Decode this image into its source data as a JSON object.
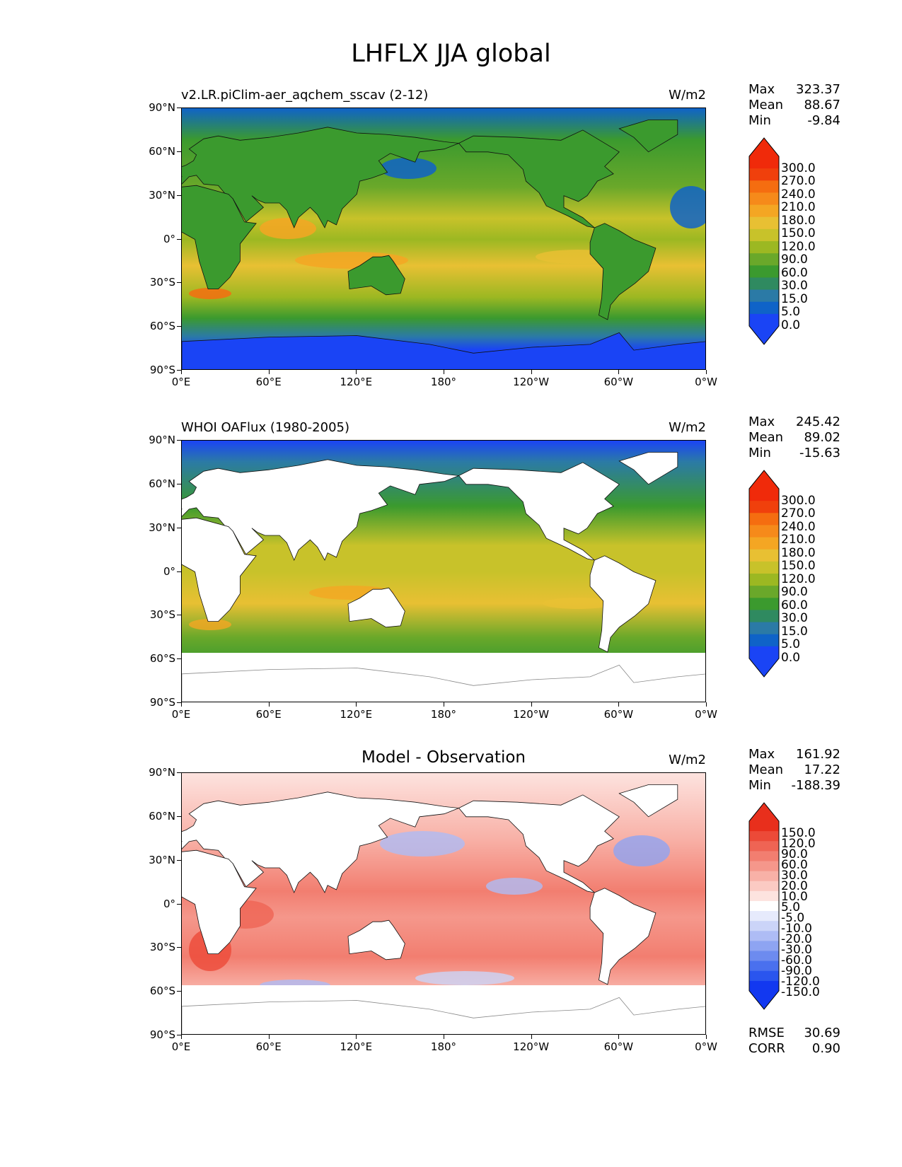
{
  "figure_title": "LHFLX JJA global",
  "panels": [
    {
      "id": "model",
      "title_left": "v2.LR.piClim-aer_aqchem_sscav (2-12)",
      "title_center": "",
      "units": "W/m2",
      "stats": [
        [
          "Max",
          "323.37"
        ],
        [
          "Mean",
          "88.67"
        ],
        [
          "Min",
          "-9.84"
        ]
      ],
      "extra_stats": [],
      "colorbar_labels": [
        "300.0",
        "270.0",
        "240.0",
        "210.0",
        "180.0",
        "150.0",
        "120.0",
        "90.0",
        "60.0",
        "30.0",
        "15.0",
        "5.0",
        "0.0"
      ],
      "colorbar_colors": [
        "#1a44f5",
        "#0f63c8",
        "#2b7aa6",
        "#2f8a60",
        "#3b9a2e",
        "#6aa82a",
        "#9cb822",
        "#c8c22a",
        "#e8c033",
        "#f4a623",
        "#f68a1a",
        "#f56d10",
        "#f0400c",
        "#f02a0a"
      ],
      "land_masked": false
    },
    {
      "id": "obs",
      "title_left": "WHOI OAFlux (1980-2005)",
      "title_center": "",
      "units": "W/m2",
      "stats": [
        [
          "Max",
          "245.42"
        ],
        [
          "Mean",
          "89.02"
        ],
        [
          "Min",
          "-15.63"
        ]
      ],
      "extra_stats": [],
      "colorbar_labels": [
        "300.0",
        "270.0",
        "240.0",
        "210.0",
        "180.0",
        "150.0",
        "120.0",
        "90.0",
        "60.0",
        "30.0",
        "15.0",
        "5.0",
        "0.0"
      ],
      "colorbar_colors": [
        "#1a44f5",
        "#0f63c8",
        "#2b7aa6",
        "#2f8a60",
        "#3b9a2e",
        "#6aa82a",
        "#9cb822",
        "#c8c22a",
        "#e8c033",
        "#f4a623",
        "#f68a1a",
        "#f56d10",
        "#f0400c",
        "#f02a0a"
      ],
      "land_masked": true
    },
    {
      "id": "diff",
      "title_left": "",
      "title_center": "Model - Observation",
      "units": "W/m2",
      "stats": [
        [
          "Max",
          "161.92"
        ],
        [
          "Mean",
          "17.22"
        ],
        [
          "Min",
          "-188.39"
        ]
      ],
      "extra_stats": [
        [
          "RMSE",
          "30.69"
        ],
        [
          "CORR",
          "0.90"
        ]
      ],
      "colorbar_labels": [
        "150.0",
        "120.0",
        "90.0",
        "60.0",
        "30.0",
        "20.0",
        "10.0",
        "5.0",
        "-5.0",
        "-10.0",
        "-20.0",
        "-30.0",
        "-60.0",
        "-90.0",
        "-120.0",
        "-150.0"
      ],
      "colorbar_colors": [
        "#1238f0",
        "#2a55ee",
        "#4a70ee",
        "#6d8bef",
        "#8ea4f2",
        "#aebcf5",
        "#cbd4f8",
        "#e6eafc",
        "#ffffff",
        "#fde3df",
        "#fbcac3",
        "#f8b1a7",
        "#f5978b",
        "#f27e70",
        "#ef6454",
        "#ec4a38",
        "#e82f1c"
      ],
      "land_masked": true
    }
  ],
  "axes": {
    "lat_ticks": [
      "90°N",
      "60°N",
      "30°N",
      "0°",
      "30°S",
      "60°S",
      "90°S"
    ],
    "lon_ticks": [
      "0°E",
      "60°E",
      "120°E",
      "180°",
      "120°W",
      "60°W",
      "0°W"
    ]
  }
}
